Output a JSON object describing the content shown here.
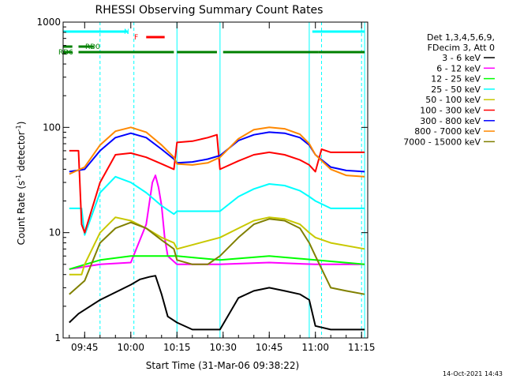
{
  "chart_data": {
    "type": "line",
    "title": "RHESSI Observing Summary Count Rates",
    "xlabel": "Start Time (31-Mar-06 09:38:22)",
    "ylabel_main": "Count Rate (s",
    "ylabel_sup1": "-1",
    "ylabel_mid": " detector",
    "ylabel_sup2": "-1",
    "ylabel_end": ")",
    "yscale": "log",
    "xlim": [
      "09:38",
      "11:17"
    ],
    "ylim": [
      1,
      1000
    ],
    "x_ticks": [
      "09:45",
      "10:00",
      "10:15",
      "10:30",
      "10:45",
      "11:00",
      "11:15"
    ],
    "y_ticks": [
      "1",
      "10",
      "100",
      "1000"
    ],
    "timestamp": "14-Oct-2021 14:43",
    "legend": {
      "header": [
        "Det 1,3,4,5,6,9,",
        "FDecim 3, Att 0"
      ],
      "placement": "right"
    },
    "flag_bars": [
      {
        "label": "N",
        "color": "#00ffff",
        "segments": [
          [
            "09:38",
            "09:59"
          ],
          [
            "10:59",
            "11:16"
          ]
        ]
      },
      {
        "label": "F",
        "color": "#ff0000",
        "segments": [
          [
            "10:05",
            "10:11"
          ]
        ]
      },
      {
        "label": "RD0",
        "color": "#008000",
        "segments": [
          [
            "09:38",
            "09:41"
          ],
          [
            "09:43",
            "09:48"
          ]
        ]
      },
      {
        "label": "RD6",
        "color": "#008000",
        "segments": [
          [
            "09:38",
            "09:41"
          ],
          [
            "09:43",
            "10:14"
          ],
          [
            "10:15",
            "10:28"
          ],
          [
            "10:30",
            "11:01"
          ],
          [
            "11:01",
            "11:16"
          ]
        ]
      }
    ],
    "vlines_solid": [
      "09:38",
      "10:15",
      "10:29",
      "10:58",
      "11:16"
    ],
    "vlines_dashed": [
      "09:50",
      "10:01",
      "11:02",
      "11:15"
    ],
    "series": [
      {
        "name": "3 - 6 keV",
        "color": "#000000",
        "points": [
          [
            "09:40",
            1.4
          ],
          [
            "09:43",
            1.7
          ],
          [
            "09:50",
            2.3
          ],
          [
            "10:00",
            3.2
          ],
          [
            "10:03",
            3.6
          ],
          [
            "10:06",
            3.8
          ],
          [
            "10:08",
            3.9
          ],
          [
            "10:10",
            2.6
          ],
          [
            "10:12",
            1.6
          ],
          [
            "10:15",
            1.4
          ],
          [
            "10:20",
            1.2
          ],
          [
            "10:29",
            1.2
          ],
          [
            "10:35",
            2.4
          ],
          [
            "10:40",
            2.8
          ],
          [
            "10:45",
            3.0
          ],
          [
            "10:50",
            2.8
          ],
          [
            "10:55",
            2.6
          ],
          [
            "10:58",
            2.3
          ],
          [
            "11:00",
            1.3
          ],
          [
            "11:05",
            1.2
          ],
          [
            "11:16",
            1.2
          ]
        ]
      },
      {
        "name": "6 - 12 keV",
        "color": "#ff00ff",
        "points": [
          [
            "09:40",
            4.5
          ],
          [
            "09:50",
            5.0
          ],
          [
            "10:00",
            5.2
          ],
          [
            "10:05",
            12
          ],
          [
            "10:07",
            30
          ],
          [
            "10:08",
            35
          ],
          [
            "10:09",
            27
          ],
          [
            "10:10",
            18
          ],
          [
            "10:11",
            9
          ],
          [
            "10:12",
            6
          ],
          [
            "10:15",
            5
          ],
          [
            "10:29",
            5
          ],
          [
            "10:45",
            5.2
          ],
          [
            "11:00",
            5
          ],
          [
            "11:16",
            5
          ]
        ]
      },
      {
        "name": "12 - 25 keV",
        "color": "#00ff00",
        "points": [
          [
            "09:40",
            4.5
          ],
          [
            "09:50",
            5.5
          ],
          [
            "10:00",
            6.0
          ],
          [
            "10:15",
            6.0
          ],
          [
            "10:29",
            5.5
          ],
          [
            "10:45",
            6.0
          ],
          [
            "11:00",
            5.5
          ],
          [
            "11:16",
            5.0
          ]
        ]
      },
      {
        "name": "25 - 50 keV",
        "color": "#00ffff",
        "points": [
          [
            "09:40",
            17
          ],
          [
            "09:44",
            17
          ],
          [
            "09:45",
            9.5
          ],
          [
            "09:50",
            24
          ],
          [
            "09:55",
            34
          ],
          [
            "10:00",
            30
          ],
          [
            "10:05",
            24
          ],
          [
            "10:10",
            18
          ],
          [
            "10:14",
            15
          ],
          [
            "10:15",
            16
          ],
          [
            "10:29",
            16
          ],
          [
            "10:35",
            22
          ],
          [
            "10:40",
            26
          ],
          [
            "10:45",
            29
          ],
          [
            "10:50",
            28
          ],
          [
            "10:55",
            25
          ],
          [
            "10:58",
            22
          ],
          [
            "11:00",
            20
          ],
          [
            "11:05",
            17
          ],
          [
            "11:16",
            17
          ]
        ]
      },
      {
        "name": "50 - 100 keV",
        "color": "#c8c800",
        "points": [
          [
            "09:40",
            4.0
          ],
          [
            "09:44",
            4.0
          ],
          [
            "09:45",
            5.0
          ],
          [
            "09:50",
            10
          ],
          [
            "09:55",
            14
          ],
          [
            "10:00",
            13
          ],
          [
            "10:05",
            11
          ],
          [
            "10:10",
            9
          ],
          [
            "10:14",
            8
          ],
          [
            "10:15",
            7
          ],
          [
            "10:29",
            9
          ],
          [
            "10:35",
            11
          ],
          [
            "10:40",
            13
          ],
          [
            "10:45",
            14
          ],
          [
            "10:50",
            13.5
          ],
          [
            "10:55",
            12
          ],
          [
            "10:58",
            10
          ],
          [
            "11:00",
            9
          ],
          [
            "11:05",
            8
          ],
          [
            "11:16",
            7
          ]
        ]
      },
      {
        "name": "100 - 300 keV",
        "color": "#ff0000",
        "points": [
          [
            "09:40",
            60
          ],
          [
            "09:43",
            60
          ],
          [
            "09:44",
            12
          ],
          [
            "09:45",
            10
          ],
          [
            "09:50",
            30
          ],
          [
            "09:55",
            55
          ],
          [
            "10:00",
            57
          ],
          [
            "10:05",
            52
          ],
          [
            "10:10",
            45
          ],
          [
            "10:14",
            40
          ],
          [
            "10:15",
            72
          ],
          [
            "10:20",
            74
          ],
          [
            "10:25",
            80
          ],
          [
            "10:28",
            85
          ],
          [
            "10:29",
            40
          ],
          [
            "10:35",
            48
          ],
          [
            "10:40",
            55
          ],
          [
            "10:45",
            58
          ],
          [
            "10:50",
            55
          ],
          [
            "10:55",
            49
          ],
          [
            "10:58",
            44
          ],
          [
            "11:00",
            38
          ],
          [
            "11:02",
            62
          ],
          [
            "11:05",
            58
          ],
          [
            "11:16",
            58
          ]
        ]
      },
      {
        "name": "300 - 800 keV",
        "color": "#0000ff",
        "points": [
          [
            "09:40",
            38
          ],
          [
            "09:45",
            40
          ],
          [
            "09:50",
            60
          ],
          [
            "09:55",
            80
          ],
          [
            "10:00",
            88
          ],
          [
            "10:05",
            80
          ],
          [
            "10:10",
            62
          ],
          [
            "10:14",
            50
          ],
          [
            "10:15",
            46
          ],
          [
            "10:20",
            47
          ],
          [
            "10:25",
            50
          ],
          [
            "10:29",
            54
          ],
          [
            "10:35",
            75
          ],
          [
            "10:40",
            85
          ],
          [
            "10:45",
            90
          ],
          [
            "10:50",
            88
          ],
          [
            "10:55",
            80
          ],
          [
            "10:58",
            68
          ],
          [
            "11:00",
            55
          ],
          [
            "11:05",
            42
          ],
          [
            "11:10",
            39
          ],
          [
            "11:16",
            38
          ]
        ]
      },
      {
        "name": "800 - 7000 keV",
        "color": "#ff8800",
        "points": [
          [
            "09:40",
            36
          ],
          [
            "09:45",
            42
          ],
          [
            "09:50",
            68
          ],
          [
            "09:55",
            92
          ],
          [
            "10:00",
            100
          ],
          [
            "10:05",
            90
          ],
          [
            "10:10",
            68
          ],
          [
            "10:14",
            52
          ],
          [
            "10:15",
            45
          ],
          [
            "10:20",
            44
          ],
          [
            "10:25",
            46
          ],
          [
            "10:29",
            52
          ],
          [
            "10:35",
            78
          ],
          [
            "10:40",
            95
          ],
          [
            "10:45",
            100
          ],
          [
            "10:50",
            97
          ],
          [
            "10:55",
            86
          ],
          [
            "10:58",
            70
          ],
          [
            "11:00",
            55
          ],
          [
            "11:05",
            40
          ],
          [
            "11:10",
            35
          ],
          [
            "11:16",
            34
          ]
        ]
      },
      {
        "name": "7000 - 15000 keV",
        "color": "#808000",
        "points": [
          [
            "09:40",
            2.6
          ],
          [
            "09:45",
            3.5
          ],
          [
            "09:50",
            8
          ],
          [
            "09:55",
            11
          ],
          [
            "10:00",
            12.5
          ],
          [
            "10:05",
            11
          ],
          [
            "10:10",
            8.5
          ],
          [
            "10:14",
            7
          ],
          [
            "10:15",
            5.5
          ],
          [
            "10:20",
            5.0
          ],
          [
            "10:25",
            5.0
          ],
          [
            "10:29",
            6
          ],
          [
            "10:35",
            9
          ],
          [
            "10:40",
            12
          ],
          [
            "10:45",
            13.5
          ],
          [
            "10:50",
            13
          ],
          [
            "10:55",
            11
          ],
          [
            "10:58",
            8
          ],
          [
            "11:00",
            6
          ],
          [
            "11:05",
            3
          ],
          [
            "11:10",
            2.8
          ],
          [
            "11:16",
            2.6
          ]
        ]
      }
    ]
  }
}
